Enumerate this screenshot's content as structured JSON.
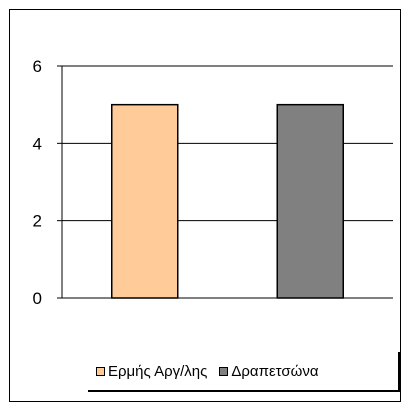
{
  "chart_data": {
    "type": "bar",
    "categories": [
      "Ερμής Αργ/λης",
      "Δραπετσώνα"
    ],
    "series": [
      {
        "name": "Ερμής Αργ/λης",
        "values": [
          5,
          null
        ],
        "color": "#FFCC99"
      },
      {
        "name": "Δραπετσώνα",
        "values": [
          null,
          5
        ],
        "color": "#808080"
      }
    ],
    "title": "",
    "xlabel": "",
    "ylabel": "",
    "ylim": [
      0,
      6
    ],
    "yticks": [
      "0",
      "2",
      "4",
      "6"
    ],
    "grid": true,
    "legend": "bottom"
  }
}
